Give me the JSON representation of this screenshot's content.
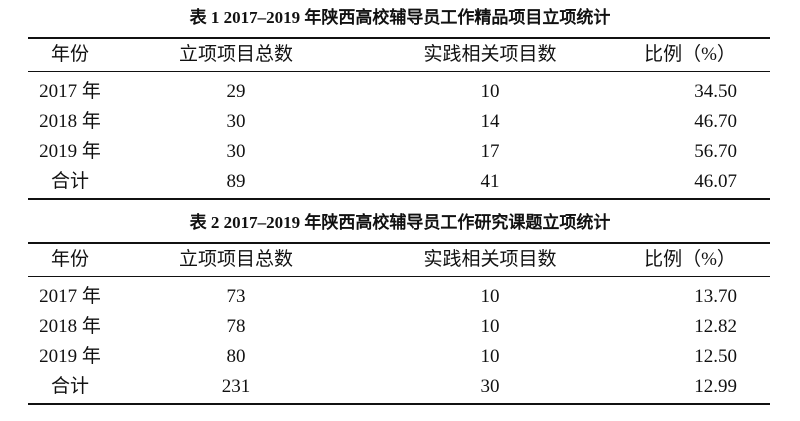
{
  "tables": [
    {
      "title": "表 1  2017–2019 年陕西高校辅导员工作精品项目立项统计",
      "header": [
        "年份",
        "立项项目总数",
        "实践相关项目数",
        "比例（%）"
      ],
      "rows": [
        [
          "2017 年",
          "29",
          "10",
          "34.50"
        ],
        [
          "2018 年",
          "30",
          "14",
          "46.70"
        ],
        [
          "2019 年",
          "30",
          "17",
          "56.70"
        ],
        [
          "合计",
          "89",
          "41",
          "46.07"
        ]
      ]
    },
    {
      "title": "表 2  2017–2019 年陕西高校辅导员工作研究课题立项统计",
      "header": [
        "年份",
        "立项项目总数",
        "实践相关项目数",
        "比例（%）"
      ],
      "rows": [
        [
          "2017 年",
          "73",
          "10",
          "13.70"
        ],
        [
          "2018 年",
          "78",
          "10",
          "12.82"
        ],
        [
          "2019 年",
          "80",
          "10",
          "12.50"
        ],
        [
          "合计",
          "231",
          "30",
          "12.99"
        ]
      ]
    }
  ]
}
